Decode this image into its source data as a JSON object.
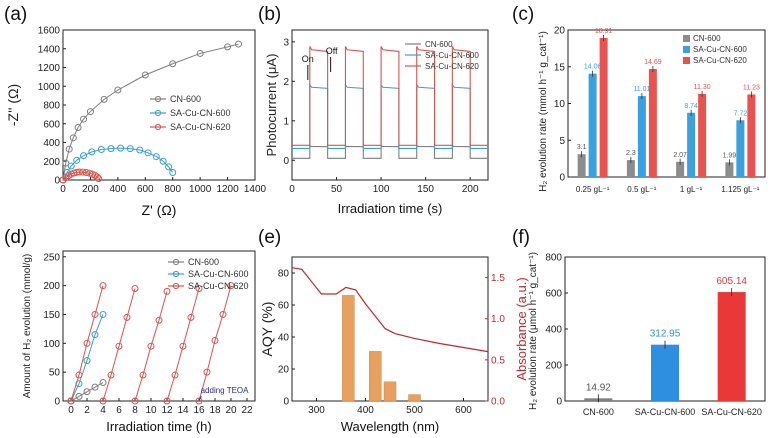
{
  "chart_data": [
    {
      "id": "a",
      "label": "(a)",
      "type": "scatter",
      "xlabel": "Z' (Ω)",
      "ylabel": "-Z'' (Ω)",
      "xlim": [
        0,
        1400
      ],
      "ylim": [
        0,
        1600
      ],
      "xticks": [
        0,
        200,
        400,
        600,
        800,
        1000,
        1200,
        1400
      ],
      "yticks": [
        0,
        200,
        400,
        600,
        800,
        1000,
        1200,
        1400,
        1600
      ],
      "legend_position": "center-right",
      "series": [
        {
          "name": "CN-600",
          "color": "#7f7f7f",
          "marker": "circle",
          "x": [
            0,
            20,
            45,
            75,
            110,
            150,
            200,
            300,
            400,
            600,
            800,
            1000,
            1200,
            1280
          ],
          "y": [
            0,
            180,
            330,
            450,
            560,
            650,
            730,
            860,
            960,
            1120,
            1240,
            1350,
            1420,
            1450
          ]
        },
        {
          "name": "SA-Cu-CN-600",
          "color": "#3aa0d0",
          "marker": "circle",
          "x": [
            0,
            30,
            60,
            100,
            150,
            210,
            280,
            350,
            420,
            490,
            560,
            620,
            680,
            730,
            770,
            800
          ],
          "y": [
            0,
            80,
            150,
            210,
            260,
            300,
            325,
            335,
            340,
            335,
            320,
            290,
            250,
            200,
            140,
            80
          ]
        },
        {
          "name": "SA-Cu-CN-620",
          "color": "#d9534f",
          "marker": "circle",
          "x": [
            0,
            20,
            40,
            60,
            80,
            100,
            120,
            145,
            170,
            195,
            215,
            235,
            250,
            260
          ],
          "y": [
            0,
            25,
            45,
            62,
            75,
            82,
            85,
            84,
            80,
            72,
            62,
            48,
            32,
            15
          ]
        }
      ]
    },
    {
      "id": "b",
      "label": "(b)",
      "type": "line",
      "xlabel": "Irradiation time (s)",
      "ylabel": "Photocurrent (μA)",
      "xlim": [
        0,
        220
      ],
      "ylim": [
        -0.5,
        3.3
      ],
      "xticks": [
        0,
        50,
        100,
        150,
        200
      ],
      "yticks": [
        0,
        1,
        2,
        3
      ],
      "legend_position": "top-right",
      "annotations": [
        "On",
        "Off"
      ],
      "light_on_intervals": [
        [
          20,
          40
        ],
        [
          60,
          80
        ],
        [
          100,
          120
        ],
        [
          140,
          160
        ],
        [
          180,
          200
        ]
      ],
      "series": [
        {
          "name": "CN-600",
          "color": "#7f7f7f",
          "baseline": 0.05,
          "on_value": 0.35
        },
        {
          "name": "SA-Cu-CN-600",
          "color": "#3aa0d0",
          "baseline": 0.3,
          "on_value": 1.85
        },
        {
          "name": "SA-Cu-CN-620",
          "color": "#d9534f",
          "baseline": 0.38,
          "on_value": 2.8
        }
      ]
    },
    {
      "id": "c",
      "label": "(c)",
      "type": "bar",
      "ylabel": "H₂ evolution rate (mmol h⁻¹ g_cat⁻¹)",
      "ylim": [
        0,
        20
      ],
      "yticks": [
        0,
        5,
        10,
        15,
        20
      ],
      "categories": [
        "0.25 gL⁻¹",
        "0.5 gL⁻¹",
        "1 gL⁻¹",
        "1.125 gL⁻¹"
      ],
      "legend_position": "top-right",
      "series": [
        {
          "name": "CN-600",
          "color": "#8c8c8c",
          "values": [
            3.1,
            2.3,
            2.07,
            1.99
          ],
          "labels": [
            "3.1",
            "2.3",
            "2.07",
            "1.99"
          ]
        },
        {
          "name": "SA-Cu-CN-600",
          "color": "#3aa0e0",
          "values": [
            14.06,
            11.01,
            8.74,
            7.72
          ],
          "labels": [
            "14.06",
            "11.01",
            "8.74",
            "7.72"
          ]
        },
        {
          "name": "SA-Cu-CN-620",
          "color": "#e8524f",
          "values": [
            18.91,
            14.69,
            11.3,
            11.23
          ],
          "labels": [
            "18.91",
            "14.69",
            "11.30",
            "11.23"
          ]
        }
      ]
    },
    {
      "id": "d",
      "label": "(d)",
      "type": "line",
      "xlabel": "Irradiation time (h)",
      "ylabel": "Amount of H₂ evolution (mmol/g)",
      "xlim": [
        -1,
        23
      ],
      "ylim": [
        0,
        260
      ],
      "xticks": [
        0,
        2,
        4,
        6,
        8,
        10,
        12,
        14,
        16,
        18,
        20,
        22
      ],
      "yticks": [
        0,
        50,
        100,
        150,
        200,
        250
      ],
      "legend_position": "top-right",
      "annotation": "adding TEOA",
      "series": [
        {
          "name": "CN-600",
          "color": "#7f7f7f",
          "x": [
            0,
            1,
            2,
            3,
            4
          ],
          "y": [
            0,
            8,
            16,
            24,
            32
          ]
        },
        {
          "name": "SA-Cu-CN-600",
          "color": "#3aa0d0",
          "x": [
            0,
            1,
            2,
            3,
            4
          ],
          "y": [
            0,
            30,
            70,
            115,
            150
          ]
        },
        {
          "name": "SA-Cu-CN-620",
          "color": "#d9534f",
          "cycles": [
            {
              "x": [
                0,
                1,
                2,
                3,
                4
              ],
              "y": [
                0,
                45,
                100,
                150,
                200
              ]
            },
            {
              "x": [
                4,
                5,
                6,
                7,
                8
              ],
              "y": [
                0,
                45,
                95,
                145,
                195
              ]
            },
            {
              "x": [
                8,
                9,
                10,
                11,
                12
              ],
              "y": [
                0,
                45,
                95,
                140,
                190
              ]
            },
            {
              "x": [
                12,
                13,
                14,
                15,
                16
              ],
              "y": [
                0,
                45,
                95,
                145,
                195
              ]
            },
            {
              "x": [
                16,
                17,
                18,
                19,
                20
              ],
              "y": [
                0,
                50,
                105,
                150,
                200
              ]
            }
          ]
        }
      ]
    },
    {
      "id": "e",
      "label": "(e)",
      "type": "bar",
      "xlabel": "Wavelength (nm)",
      "ylabel": "AQY (%)",
      "ylabel_right": "Absorbance (a.u.)",
      "xlim": [
        250,
        650
      ],
      "ylim": [
        0,
        90
      ],
      "ylim_right": [
        0,
        1.75
      ],
      "xticks": [
        300,
        400,
        500,
        600
      ],
      "yticks": [
        0,
        20,
        40,
        60,
        80
      ],
      "yticks_right": [
        0.0,
        0.5,
        1.0,
        1.5
      ],
      "bars": {
        "color": "#e8a060",
        "x": [
          365,
          420,
          450,
          500
        ],
        "values": [
          66,
          31,
          12,
          4
        ]
      },
      "absorbance": {
        "color": "#c0282d",
        "x": [
          250,
          270,
          290,
          310,
          320,
          340,
          360,
          380,
          400,
          420,
          440,
          460,
          500,
          550,
          600,
          650
        ],
        "y": [
          1.62,
          1.6,
          1.45,
          1.3,
          1.3,
          1.3,
          1.38,
          1.35,
          1.18,
          1.03,
          0.88,
          0.82,
          0.76,
          0.7,
          0.65,
          0.6
        ]
      }
    },
    {
      "id": "f",
      "label": "(f)",
      "type": "bar",
      "ylabel": "H₂ evolution rate (μmol h⁻¹ g_cat⁻¹)",
      "ylim": [
        0,
        800
      ],
      "yticks": [
        0,
        200,
        400,
        600,
        800
      ],
      "categories": [
        "CN-600",
        "SA-Cu-CN-600",
        "SA-Cu-CN-620"
      ],
      "values": [
        14.92,
        312.95,
        605.14
      ],
      "labels": [
        "14.92",
        "312.95",
        "605.14"
      ],
      "colors": [
        "#7f7f7f",
        "#2e8fe0",
        "#e83838"
      ]
    }
  ]
}
